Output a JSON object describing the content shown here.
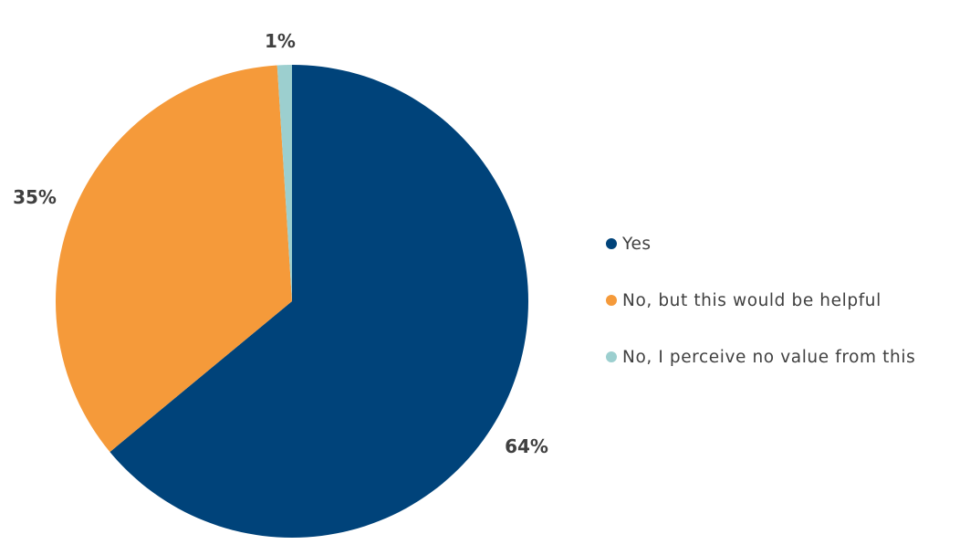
{
  "chart_data": {
    "type": "pie",
    "categories": [
      "Yes",
      "No, but this would be helpful",
      "No, I perceive no value from this"
    ],
    "values": [
      64,
      35,
      1
    ],
    "labels": [
      "64%",
      "35%",
      "1%"
    ],
    "colors": [
      "#00437A",
      "#F59A3A",
      "#9CCFCF"
    ],
    "legend_position": "right"
  }
}
